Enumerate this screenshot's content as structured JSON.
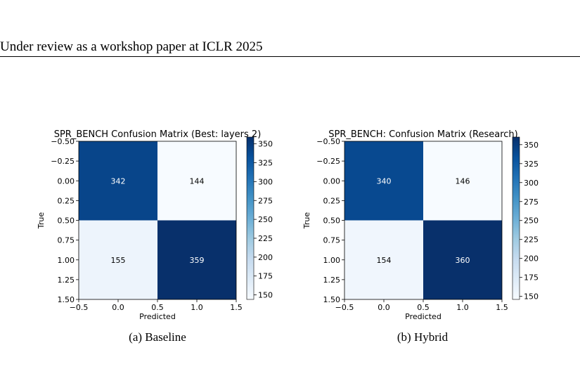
{
  "header": {
    "text": "Under review as a workshop paper at ICLR 2025"
  },
  "figures": [
    {
      "caption": "(a) Baseline"
    },
    {
      "caption": "(b) Hybrid"
    }
  ],
  "chart_data": [
    {
      "type": "heatmap",
      "title": "SPR_BENCH Confusion Matrix (Best: layers 2)",
      "xlabel": "Predicted",
      "ylabel": "True",
      "x_ticks": [
        "−0.5",
        "0.0",
        "0.5",
        "1.0",
        "1.5"
      ],
      "y_ticks": [
        "−0.50",
        "−0.25",
        "0.00",
        "0.25",
        "0.50",
        "0.75",
        "1.00",
        "1.25",
        "1.50"
      ],
      "matrix": [
        [
          342,
          144
        ],
        [
          155,
          359
        ]
      ],
      "colormap": "Blues",
      "vmin": 144,
      "vmax": 359,
      "colorbar_ticks": [
        "350",
        "325",
        "300",
        "275",
        "250",
        "225",
        "200",
        "175",
        "150"
      ],
      "colorbar_values": [
        350,
        325,
        300,
        275,
        250,
        225,
        200,
        175,
        150
      ],
      "grid": false
    },
    {
      "type": "heatmap",
      "title": "SPR_BENCH: Confusion Matrix (Research)",
      "xlabel": "Predicted",
      "ylabel": "True",
      "x_ticks": [
        "−0.5",
        "0.0",
        "0.5",
        "1.0",
        "1.5"
      ],
      "y_ticks": [
        "−0.50",
        "−0.25",
        "0.00",
        "0.25",
        "0.50",
        "0.75",
        "1.00",
        "1.25",
        "1.50"
      ],
      "matrix": [
        [
          340,
          146
        ],
        [
          154,
          360
        ]
      ],
      "colormap": "Blues",
      "vmin": 146,
      "vmax": 360,
      "colorbar_ticks": [
        "350",
        "325",
        "300",
        "275",
        "250",
        "225",
        "200",
        "175",
        "150"
      ],
      "colorbar_values": [
        350,
        325,
        300,
        275,
        250,
        225,
        200,
        175,
        150
      ],
      "grid": false
    }
  ]
}
